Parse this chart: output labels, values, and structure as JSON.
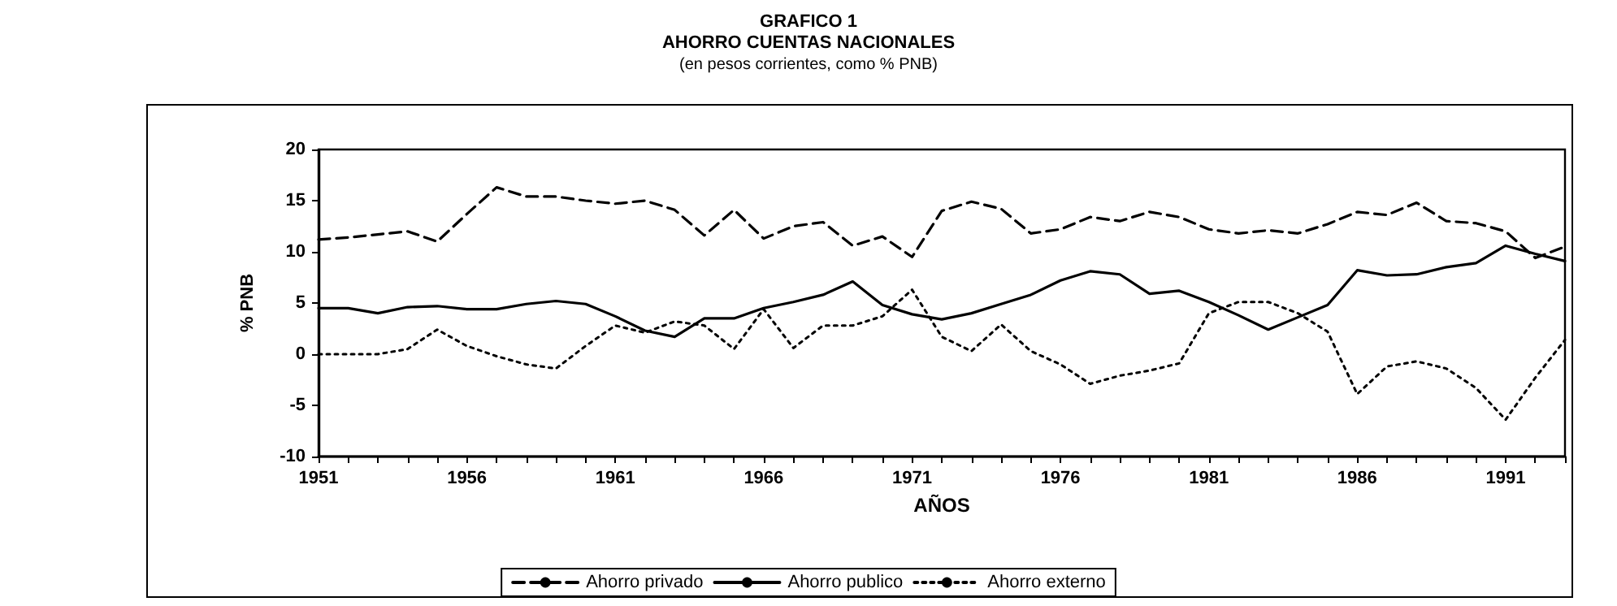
{
  "chart_data": {
    "type": "line",
    "title": "GRAFICO 1\nAHORRO CUENTAS NACIONALES",
    "subtitle": "(en pesos corrientes, como % PNB)",
    "xlabel": "AÑOS",
    "ylabel": "% PNB",
    "x": [
      1951,
      1952,
      1953,
      1954,
      1955,
      1956,
      1957,
      1958,
      1959,
      1960,
      1961,
      1962,
      1963,
      1964,
      1965,
      1966,
      1967,
      1968,
      1969,
      1970,
      1971,
      1972,
      1973,
      1974,
      1975,
      1976,
      1977,
      1978,
      1979,
      1980,
      1981,
      1982,
      1983,
      1984,
      1985,
      1986,
      1987,
      1988,
      1989,
      1990,
      1991,
      1992,
      1993
    ],
    "series": [
      {
        "name": "Ahorro privado",
        "color": "#000000",
        "line_style": "dashed",
        "values": [
          11.2,
          11.4,
          11.7,
          12.0,
          11.0,
          13.7,
          16.3,
          15.4,
          15.4,
          15.0,
          14.7,
          15.0,
          14.1,
          11.6,
          14.1,
          11.3,
          12.5,
          12.9,
          10.6,
          11.5,
          9.5,
          14.0,
          14.9,
          14.2,
          11.8,
          12.2,
          13.4,
          13.0,
          13.9,
          13.4,
          12.2,
          11.8,
          12.1,
          11.8,
          12.7,
          13.9,
          13.6,
          14.8,
          13.0,
          12.8,
          12.0,
          9.4,
          10.5
        ]
      },
      {
        "name": "Ahorro publico",
        "color": "#000000",
        "line_style": "solid",
        "values": [
          4.5,
          4.5,
          4.0,
          4.6,
          4.7,
          4.4,
          4.4,
          4.9,
          5.2,
          4.9,
          3.7,
          2.3,
          1.7,
          3.5,
          3.5,
          4.5,
          5.1,
          5.8,
          7.1,
          4.8,
          3.9,
          3.4,
          4.0,
          4.9,
          5.8,
          7.2,
          8.1,
          7.8,
          5.9,
          6.2,
          5.1,
          3.8,
          2.4,
          3.6,
          4.8,
          8.2,
          7.7,
          7.8,
          8.5,
          8.9,
          10.6,
          9.8,
          9.1
        ]
      },
      {
        "name": "Ahorro externo",
        "color": "#000000",
        "line_style": "dotted",
        "values": [
          0,
          0,
          0,
          0.5,
          2.4,
          0.8,
          -0.2,
          -1.0,
          -1.4,
          0.8,
          2.8,
          2.1,
          3.2,
          2.8,
          0.5,
          4.4,
          0.6,
          2.8,
          2.8,
          3.7,
          6.3,
          1.7,
          0.3,
          2.9,
          0.3,
          -1.0,
          -2.9,
          -2.1,
          -1.6,
          -0.9,
          4.0,
          5.1,
          5.1,
          4.0,
          2.2,
          -3.9,
          -1.2,
          -0.7,
          -1.4,
          -3.3,
          -6.4,
          -2.3,
          1.4
        ]
      }
    ],
    "xlim": [
      1951,
      1993
    ],
    "xticks": [
      1951,
      {
        "value": 1952,
        "label": null
      },
      {
        "value": 1953,
        "label": null
      },
      {
        "value": 1954,
        "label": null
      },
      {
        "value": 1955,
        "label": null
      },
      1956,
      {
        "value": 1957,
        "label": null
      },
      {
        "value": 1958,
        "label": null
      },
      {
        "value": 1959,
        "label": null
      },
      {
        "value": 1960,
        "label": null
      },
      1961,
      {
        "value": 1962,
        "label": null
      },
      {
        "value": 1963,
        "label": null
      },
      {
        "value": 1964,
        "label": null
      },
      {
        "value": 1965,
        "label": null
      },
      1966,
      {
        "value": 1967,
        "label": null
      },
      {
        "value": 1968,
        "label": null
      },
      {
        "value": 1969,
        "label": null
      },
      {
        "value": 1970,
        "label": null
      },
      1971,
      {
        "value": 1972,
        "label": null
      },
      {
        "value": 1973,
        "label": null
      },
      {
        "value": 1974,
        "label": null
      },
      {
        "value": 1975,
        "label": null
      },
      1976,
      {
        "value": 1977,
        "label": null
      },
      {
        "value": 1978,
        "label": null
      },
      {
        "value": 1979,
        "label": null
      },
      {
        "value": 1980,
        "label": null
      },
      1981,
      {
        "value": 1982,
        "label": null
      },
      {
        "value": 1983,
        "label": null
      },
      {
        "value": 1984,
        "label": null
      },
      {
        "value": 1985,
        "label": null
      },
      1986,
      {
        "value": 1987,
        "label": null
      },
      {
        "value": 1988,
        "label": null
      },
      {
        "value": 1989,
        "label": null
      },
      {
        "value": 1990,
        "label": null
      },
      1991,
      {
        "value": 1992,
        "label": null
      },
      {
        "value": 1993,
        "label": null
      }
    ],
    "ylim": [
      -10,
      20
    ],
    "yticks": [
      -10,
      -5,
      0,
      5,
      10,
      15,
      20
    ],
    "grid": false,
    "legend": "bottom",
    "marker": "none"
  }
}
